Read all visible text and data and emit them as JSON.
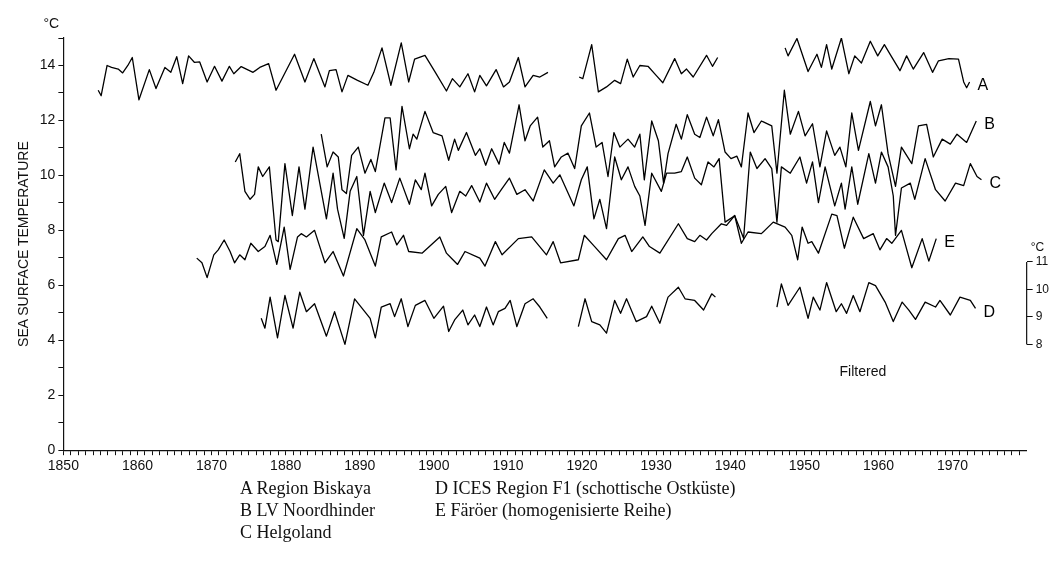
{
  "chart_data": {
    "type": "line",
    "ylabel": "SEA SURFACE TEMPERATURE",
    "y2label": "°C",
    "marker": "none",
    "line_style": "solid",
    "grid": false,
    "legend": false,
    "xlim": [
      1850,
      1980
    ],
    "xticks": [
      1850,
      {
        "value": 1851,
        "label": null
      },
      {
        "value": 1852,
        "label": null
      },
      {
        "value": 1853,
        "label": null
      },
      {
        "value": 1854,
        "label": null
      },
      {
        "value": 1855,
        "label": null
      },
      {
        "value": 1856,
        "label": null
      },
      {
        "value": 1857,
        "label": null
      },
      {
        "value": 1858,
        "label": null
      },
      {
        "value": 1859,
        "label": null
      },
      1860,
      {
        "value": 1861,
        "label": null
      },
      {
        "value": 1862,
        "label": null
      },
      {
        "value": 1863,
        "label": null
      },
      {
        "value": 1864,
        "label": null
      },
      {
        "value": 1865,
        "label": null
      },
      {
        "value": 1866,
        "label": null
      },
      {
        "value": 1867,
        "label": null
      },
      {
        "value": 1868,
        "label": null
      },
      {
        "value": 1869,
        "label": null
      },
      1870,
      {
        "value": 1871,
        "label": null
      },
      {
        "value": 1872,
        "label": null
      },
      {
        "value": 1873,
        "label": null
      },
      {
        "value": 1874,
        "label": null
      },
      {
        "value": 1875,
        "label": null
      },
      {
        "value": 1876,
        "label": null
      },
      {
        "value": 1877,
        "label": null
      },
      {
        "value": 1878,
        "label": null
      },
      {
        "value": 1879,
        "label": null
      },
      1880,
      {
        "value": 1881,
        "label": null
      },
      {
        "value": 1882,
        "label": null
      },
      {
        "value": 1883,
        "label": null
      },
      {
        "value": 1884,
        "label": null
      },
      {
        "value": 1885,
        "label": null
      },
      {
        "value": 1886,
        "label": null
      },
      {
        "value": 1887,
        "label": null
      },
      {
        "value": 1888,
        "label": null
      },
      {
        "value": 1889,
        "label": null
      },
      1890,
      {
        "value": 1891,
        "label": null
      },
      {
        "value": 1892,
        "label": null
      },
      {
        "value": 1893,
        "label": null
      },
      {
        "value": 1894,
        "label": null
      },
      {
        "value": 1895,
        "label": null
      },
      {
        "value": 1896,
        "label": null
      },
      {
        "value": 1897,
        "label": null
      },
      {
        "value": 1898,
        "label": null
      },
      {
        "value": 1899,
        "label": null
      },
      1900,
      {
        "value": 1901,
        "label": null
      },
      {
        "value": 1902,
        "label": null
      },
      {
        "value": 1903,
        "label": null
      },
      {
        "value": 1904,
        "label": null
      },
      {
        "value": 1905,
        "label": null
      },
      {
        "value": 1906,
        "label": null
      },
      {
        "value": 1907,
        "label": null
      },
      {
        "value": 1908,
        "label": null
      },
      {
        "value": 1909,
        "label": null
      },
      1910,
      {
        "value": 1911,
        "label": null
      },
      {
        "value": 1912,
        "label": null
      },
      {
        "value": 1913,
        "label": null
      },
      {
        "value": 1914,
        "label": null
      },
      {
        "value": 1915,
        "label": null
      },
      {
        "value": 1916,
        "label": null
      },
      {
        "value": 1917,
        "label": null
      },
      {
        "value": 1918,
        "label": null
      },
      {
        "value": 1919,
        "label": null
      },
      1920,
      {
        "value": 1921,
        "label": null
      },
      {
        "value": 1922,
        "label": null
      },
      {
        "value": 1923,
        "label": null
      },
      {
        "value": 1924,
        "label": null
      },
      {
        "value": 1925,
        "label": null
      },
      {
        "value": 1926,
        "label": null
      },
      {
        "value": 1927,
        "label": null
      },
      {
        "value": 1928,
        "label": null
      },
      {
        "value": 1929,
        "label": null
      },
      1930,
      {
        "value": 1931,
        "label": null
      },
      {
        "value": 1932,
        "label": null
      },
      {
        "value": 1933,
        "label": null
      },
      {
        "value": 1934,
        "label": null
      },
      {
        "value": 1935,
        "label": null
      },
      {
        "value": 1936,
        "label": null
      },
      {
        "value": 1937,
        "label": null
      },
      {
        "value": 1938,
        "label": null
      },
      {
        "value": 1939,
        "label": null
      },
      1940,
      {
        "value": 1941,
        "label": null
      },
      {
        "value": 1942,
        "label": null
      },
      {
        "value": 1943,
        "label": null
      },
      {
        "value": 1944,
        "label": null
      },
      {
        "value": 1945,
        "label": null
      },
      {
        "value": 1946,
        "label": null
      },
      {
        "value": 1947,
        "label": null
      },
      {
        "value": 1948,
        "label": null
      },
      {
        "value": 1949,
        "label": null
      },
      1950,
      {
        "value": 1951,
        "label": null
      },
      {
        "value": 1952,
        "label": null
      },
      {
        "value": 1953,
        "label": null
      },
      {
        "value": 1954,
        "label": null
      },
      {
        "value": 1955,
        "label": null
      },
      {
        "value": 1956,
        "label": null
      },
      {
        "value": 1957,
        "label": null
      },
      {
        "value": 1958,
        "label": null
      },
      {
        "value": 1959,
        "label": null
      },
      1960,
      {
        "value": 1961,
        "label": null
      },
      {
        "value": 1962,
        "label": null
      },
      {
        "value": 1963,
        "label": null
      },
      {
        "value": 1964,
        "label": null
      },
      {
        "value": 1965,
        "label": null
      },
      {
        "value": 1966,
        "label": null
      },
      {
        "value": 1967,
        "label": null
      },
      {
        "value": 1968,
        "label": null
      },
      {
        "value": 1969,
        "label": null
      },
      1970,
      {
        "value": 1971,
        "label": null
      },
      {
        "value": 1972,
        "label": null
      },
      {
        "value": 1973,
        "label": null
      },
      {
        "value": 1974,
        "label": null
      },
      {
        "value": 1975,
        "label": null
      },
      {
        "value": 1976,
        "label": null
      },
      {
        "value": 1977,
        "label": null
      },
      {
        "value": 1978,
        "label": null
      },
      {
        "value": 1979,
        "label": null
      }
    ],
    "ylim": [
      0,
      15
    ],
    "yticks": [
      0,
      {
        "value": 1,
        "label": null
      },
      2,
      {
        "value": 3,
        "label": null
      },
      4,
      {
        "value": 5,
        "label": null
      },
      6,
      {
        "value": 7,
        "label": null
      },
      8,
      {
        "value": 9,
        "label": null
      },
      10,
      {
        "value": 11,
        "label": null
      },
      12,
      {
        "value": 13,
        "label": null
      },
      14,
      {
        "value": 15,
        "label": null
      }
    ],
    "y2lim": [
      4.15,
      19.15
    ],
    "y2ticks": [
      8,
      9,
      10,
      11
    ],
    "annotations": [
      "°C",
      "Filtered",
      "A Region Biskaya",
      "B LV Noordhinder",
      "C Helgoland",
      "D ICES Region F1 (schottische Ostküste)",
      "E Färöer (homogenisierte Reihe)"
    ],
    "series": [
      {
        "name": "A",
        "color": "#000000",
        "x": [
          1854.7,
          1855.1,
          1855.9,
          1856.5,
          1857.4,
          1858.0,
          1858.7,
          1859.3,
          1860.2,
          1861.6,
          1862.5,
          1863.7,
          1864.5,
          1865.3,
          1866.1,
          1866.9,
          1867.7,
          1868.4,
          1869.4,
          1870.4,
          1871.4,
          1872.4,
          1873.0,
          1874.0,
          1875.6,
          1876.5,
          1877.7,
          1878.7,
          1881.2,
          1882.6,
          1883.8,
          1885.3,
          1885.9,
          1886.8,
          1887.6,
          1888.4,
          1889.7,
          1891.1,
          1891.9,
          1893.0,
          1894.2,
          1895.6,
          1896.6,
          1897.4,
          1898.8,
          1900.2,
          1901.7,
          1902.5,
          1903.5,
          1904.6,
          1905.5,
          1906.2,
          1907.1,
          1908.4,
          1909.4,
          1910.2,
          1911.4,
          1912.3,
          1913.4,
          1914.3,
          1915.4,
          1917.5,
          1919.6,
          1920.1,
          1921.3,
          1922.2,
          1923.3,
          1924.4,
          1925.2,
          1926.1,
          1926.9,
          1927.8,
          1928.9,
          1930.0,
          1930.9,
          1932.5,
          1933.4,
          1934.1,
          1935.0,
          1936.8,
          1937.6,
          1938.3,
          1943.0,
          1947.4,
          1947.8,
          1949.0,
          1950.5,
          1951.7,
          1952.3,
          1953.0,
          1953.7,
          1955.0,
          1956.0,
          1956.8,
          1957.7,
          1958.9,
          1959.9,
          1960.8,
          1961.7,
          1962.9,
          1963.8,
          1964.7,
          1966.1,
          1967.3,
          1968.1,
          1969.5,
          1970.8,
          1971.5,
          1971.9,
          1972.3
        ],
        "values": [
          13.1,
          12.9,
          14.0,
          13.93,
          13.87,
          13.73,
          14.0,
          14.29,
          12.75,
          13.85,
          13.16,
          13.93,
          13.75,
          14.32,
          13.34,
          14.35,
          14.11,
          14.13,
          13.4,
          13.97,
          13.43,
          13.97,
          13.7,
          13.96,
          13.75,
          13.93,
          14.07,
          13.1,
          14.41,
          13.4,
          14.25,
          13.22,
          13.81,
          13.85,
          13.04,
          13.64,
          13.46,
          13.28,
          13.75,
          14.64,
          13.28,
          14.82,
          13.4,
          14.23,
          14.37,
          13.75,
          13.07,
          13.52,
          13.22,
          13.7,
          13.04,
          13.64,
          13.26,
          13.85,
          13.22,
          13.4,
          14.29,
          13.22,
          13.64,
          13.58,
          13.75,
          null,
          13.58,
          13.52,
          14.76,
          13.04,
          13.22,
          13.46,
          13.34,
          14.23,
          13.58,
          14.0,
          13.97,
          13.64,
          13.37,
          14.25,
          13.7,
          13.87,
          13.58,
          14.37,
          13.97,
          14.29,
          null,
          14.64,
          14.35,
          14.98,
          13.78,
          14.41,
          13.93,
          14.76,
          13.87,
          15.0,
          13.7,
          14.35,
          14.09,
          14.88,
          14.35,
          14.76,
          14.35,
          13.81,
          14.35,
          13.87,
          14.47,
          13.75,
          14.17,
          14.25,
          14.23,
          13.4,
          13.19,
          13.4
        ]
      },
      {
        "name": "B",
        "color": "#000000",
        "x": [
          1884.8,
          1885.6,
          1886.4,
          1887.1,
          1887.6,
          1888.2,
          1888.9,
          1889.8,
          1890.7,
          1891.5,
          1892.1,
          1893.4,
          1894.1,
          1894.9,
          1895.7,
          1896.7,
          1897.2,
          1897.7,
          1898.8,
          1899.9,
          1901.1,
          1902.0,
          1902.8,
          1903.3,
          1904.4,
          1905.6,
          1906.2,
          1907.0,
          1907.8,
          1908.8,
          1909.5,
          1910.2,
          1911.5,
          1912.3,
          1913.0,
          1914.0,
          1914.7,
          1915.6,
          1916.3,
          1917.2,
          1918.1,
          1919.0,
          1919.9,
          1921.0,
          1921.9,
          1922.7,
          1923.5,
          1924.3,
          1925.1,
          1926.2,
          1927.1,
          1927.8,
          1928.4,
          1929.4,
          1930.3,
          1931.0,
          1931.6,
          1932.7,
          1933.4,
          1934.2,
          1935.2,
          1935.9,
          1936.8,
          1937.7,
          1938.4,
          1939.3,
          1940.1,
          1940.9,
          1941.5,
          1942.4,
          1943.2,
          1944.2,
          1945.6,
          1946.3,
          1947.3,
          1948.1,
          1949.2,
          1950.1,
          1951.1,
          1952.1,
          1953.0,
          1954.1,
          1954.8,
          1955.6,
          1956.4,
          1957.3,
          1958.9,
          1959.6,
          1960.4,
          1961.3,
          1962.3,
          1963.1,
          1964.5,
          1965.4,
          1966.5,
          1967.4,
          1968.6,
          1969.7,
          1970.6,
          1971.9,
          1973.2
        ],
        "values": [
          11.5,
          10.31,
          10.85,
          10.67,
          9.48,
          9.34,
          10.73,
          11.03,
          10.08,
          10.58,
          10.14,
          12.09,
          12.09,
          10.2,
          12.51,
          10.97,
          11.5,
          11.32,
          12.33,
          11.56,
          11.44,
          10.55,
          11.32,
          10.91,
          11.56,
          10.73,
          10.97,
          10.37,
          10.97,
          10.41,
          11.2,
          10.81,
          12.57,
          11.26,
          11.8,
          12.12,
          11.03,
          11.26,
          10.31,
          10.67,
          10.81,
          10.25,
          11.8,
          12.27,
          11.03,
          11.2,
          9.96,
          11.56,
          11.03,
          11.32,
          11.03,
          11.5,
          9.84,
          11.98,
          11.26,
          9.72,
          10.79,
          11.86,
          11.32,
          12.21,
          11.5,
          11.38,
          12.12,
          11.44,
          12.03,
          10.85,
          10.61,
          10.7,
          10.31,
          12.27,
          11.56,
          11.98,
          11.8,
          10.08,
          13.1,
          11.5,
          12.33,
          11.44,
          11.88,
          10.31,
          11.62,
          10.73,
          11.03,
          10.31,
          12.27,
          10.91,
          12.69,
          11.8,
          12.57,
          10.79,
          9.6,
          11.03,
          10.43,
          11.8,
          11.86,
          10.67,
          11.32,
          11.14,
          11.5,
          11.2,
          11.98
        ]
      },
      {
        "name": "C",
        "color": "#000000",
        "x": [
          1873.2,
          1873.8,
          1874.5,
          1875.2,
          1875.8,
          1876.3,
          1876.9,
          1877.8,
          1878.7,
          1879.0,
          1879.9,
          1880.9,
          1881.8,
          1882.6,
          1883.7,
          1884.6,
          1885.5,
          1886.4,
          1887.0,
          1887.9,
          1888.7,
          1889.6,
          1890.5,
          1891.4,
          1892.1,
          1893.3,
          1894.3,
          1895.4,
          1896.7,
          1897.5,
          1898.3,
          1898.8,
          1899.7,
          1900.6,
          1901.6,
          1902.4,
          1903.5,
          1904.3,
          1905.1,
          1906.2,
          1907.1,
          1908.2,
          1909.1,
          1910.2,
          1911.2,
          1912.3,
          1913.4,
          1914.9,
          1916.1,
          1917.0,
          1918.9,
          1919.9,
          1920.7,
          1921.6,
          1922.4,
          1923.3,
          1924.4,
          1925.3,
          1926.2,
          1927.1,
          1927.8,
          1928.5,
          1929.4,
          1930.7,
          1931.4,
          1932.5,
          1933.4,
          1934.2,
          1935.2,
          1936.1,
          1937.0,
          1937.8,
          1938.5,
          1939.3,
          1940.6,
          1941.8,
          1942.7,
          1943.6,
          1944.7,
          1945.6,
          1946.3,
          1946.9,
          1948.1,
          1949.4,
          1950.3,
          1951.1,
          1951.9,
          1952.8,
          1954.1,
          1955.0,
          1955.5,
          1956.4,
          1957.2,
          1958.7,
          1959.6,
          1960.4,
          1961.3,
          1962.0,
          1962.3,
          1963.1,
          1964.3,
          1964.9,
          1966.3,
          1967.7,
          1969.0,
          1970.4,
          1971.5,
          1972.4,
          1973.3,
          1973.9
        ],
        "values": [
          10.49,
          10.79,
          9.42,
          9.13,
          9.31,
          10.31,
          9.96,
          10.31,
          7.65,
          7.59,
          10.43,
          8.54,
          10.31,
          8.77,
          11.03,
          9.72,
          8.42,
          10.08,
          8.77,
          7.71,
          9.42,
          9.96,
          7.82,
          9.42,
          8.65,
          9.72,
          9.01,
          9.9,
          8.95,
          9.84,
          9.48,
          10.08,
          8.89,
          9.31,
          9.6,
          8.65,
          9.42,
          9.25,
          9.63,
          9.03,
          9.72,
          9.13,
          9.48,
          9.9,
          9.31,
          9.48,
          9.07,
          10.2,
          9.72,
          10.02,
          8.89,
          9.84,
          10.31,
          8.42,
          9.13,
          8.06,
          10.67,
          9.84,
          10.31,
          9.6,
          9.25,
          8.18,
          10.08,
          9.42,
          10.08,
          10.08,
          10.14,
          10.67,
          9.9,
          9.66,
          10.49,
          10.31,
          10.61,
          8.3,
          8.53,
          7.71,
          10.85,
          10.25,
          10.61,
          10.25,
          8.3,
          10.31,
          10.08,
          10.67,
          9.72,
          10.49,
          9.01,
          10.31,
          8.89,
          9.72,
          8.77,
          10.31,
          8.95,
          10.79,
          9.72,
          10.85,
          10.31,
          9.25,
          7.82,
          9.54,
          9.72,
          9.13,
          10.61,
          9.48,
          9.07,
          9.72,
          9.63,
          10.43,
          9.96,
          9.84
        ]
      },
      {
        "name": "D",
        "color": "#000000",
        "axis": "y2",
        "x": [
          1876.7,
          1877.2,
          1877.9,
          1878.9,
          1879.9,
          1881.0,
          1881.9,
          1882.8,
          1883.9,
          1885.5,
          1886.6,
          1888.0,
          1889.3,
          1891.4,
          1892.1,
          1892.9,
          1894.1,
          1894.7,
          1895.6,
          1896.5,
          1897.5,
          1898.8,
          1900.0,
          1901.3,
          1902.0,
          1902.8,
          1903.9,
          1904.6,
          1905.5,
          1906.2,
          1907.1,
          1908.0,
          1908.7,
          1909.6,
          1910.3,
          1911.2,
          1912.3,
          1913.4,
          1914.3,
          1915.3,
          1917.5,
          1919.5,
          1920.4,
          1921.3,
          1922.4,
          1923.3,
          1924.4,
          1925.2,
          1926.0,
          1927.3,
          1928.7,
          1929.4,
          1930.5,
          1931.6,
          1933.0,
          1933.9,
          1935.2,
          1936.4,
          1937.5,
          1938.0,
          1943.0,
          1946.3,
          1946.9,
          1947.8,
          1949.4,
          1950.5,
          1951.2,
          1952.1,
          1953.0,
          1954.3,
          1955.0,
          1955.7,
          1956.6,
          1957.5,
          1958.7,
          1959.6,
          1960.9,
          1962.0,
          1963.2,
          1964.1,
          1965.0,
          1966.3,
          1967.7,
          1968.3,
          1969.7,
          1971.0,
          1972.4,
          1973.1
        ],
        "values": [
          8.95,
          8.59,
          9.72,
          8.24,
          9.78,
          8.59,
          9.9,
          9.19,
          9.48,
          8.3,
          9.19,
          8.0,
          9.66,
          8.95,
          8.24,
          9.36,
          9.48,
          9.01,
          9.66,
          8.65,
          9.42,
          9.6,
          8.95,
          9.39,
          8.47,
          8.89,
          9.25,
          8.71,
          9.07,
          8.65,
          9.36,
          8.71,
          9.19,
          9.31,
          9.6,
          8.65,
          9.48,
          9.66,
          9.36,
          8.95,
          null,
          8.65,
          9.66,
          8.83,
          8.71,
          8.41,
          9.6,
          9.13,
          9.66,
          8.83,
          9.01,
          9.39,
          8.77,
          9.72,
          10.08,
          9.66,
          9.6,
          9.25,
          9.84,
          9.72,
          null,
          9.36,
          10.2,
          9.42,
          10.08,
          8.95,
          9.72,
          9.25,
          10.25,
          9.19,
          9.48,
          9.13,
          9.78,
          9.19,
          10.25,
          10.14,
          9.54,
          8.83,
          9.54,
          9.25,
          8.91,
          9.54,
          9.36,
          9.6,
          9.07,
          9.72,
          9.6,
          9.31
        ]
      },
      {
        "name": "E",
        "color": "#000000",
        "x": [
          1868.0,
          1868.7,
          1869.4,
          1870.3,
          1870.9,
          1871.7,
          1872.5,
          1873.1,
          1873.8,
          1874.5,
          1875.3,
          1876.3,
          1877.2,
          1877.9,
          1878.8,
          1879.8,
          1880.6,
          1881.6,
          1882.1,
          1882.8,
          1883.9,
          1885.3,
          1886.4,
          1887.8,
          1889.6,
          1890.7,
          1892.1,
          1892.9,
          1894.3,
          1895.0,
          1895.9,
          1896.6,
          1898.4,
          1900.8,
          1901.7,
          1903.2,
          1904.2,
          1906.2,
          1906.9,
          1908.3,
          1909.2,
          1911.4,
          1913.2,
          1915.2,
          1916.1,
          1917.1,
          1919.5,
          1920.3,
          1921.7,
          1923.3,
          1924.9,
          1925.8,
          1926.7,
          1928.2,
          1929.1,
          1930.5,
          1933.0,
          1934.2,
          1935.2,
          1935.9,
          1936.8,
          1937.5,
          1938.8,
          1939.5,
          1940.6,
          1941.5,
          1942.4,
          1944.2,
          1945.8,
          1947.4,
          1948.3,
          1949.1,
          1949.7,
          1950.5,
          1951.0,
          1951.9,
          1953.7,
          1954.4,
          1955.4,
          1956.6,
          1958.0,
          1959.3,
          1960.2,
          1961.1,
          1961.8,
          1963.1,
          1964.5,
          1965.9,
          1966.8,
          1967.8
        ],
        "values": [
          6.99,
          6.82,
          6.28,
          7.11,
          7.29,
          7.65,
          7.23,
          6.82,
          7.11,
          6.93,
          7.53,
          7.23,
          7.41,
          7.82,
          6.76,
          8.12,
          6.58,
          7.76,
          7.88,
          7.76,
          8.0,
          6.82,
          7.23,
          6.34,
          8.06,
          7.65,
          6.7,
          7.76,
          7.94,
          7.47,
          7.82,
          7.23,
          7.17,
          7.76,
          7.17,
          6.76,
          7.23,
          6.99,
          6.7,
          7.59,
          7.11,
          7.7,
          7.76,
          7.11,
          7.59,
          6.82,
          6.93,
          7.82,
          7.41,
          6.93,
          7.7,
          7.82,
          7.23,
          7.76,
          7.41,
          7.17,
          8.24,
          7.7,
          7.59,
          7.82,
          7.65,
          7.88,
          8.24,
          8.18,
          8.54,
          7.53,
          7.94,
          7.88,
          8.3,
          8.12,
          7.82,
          6.93,
          8.12,
          7.53,
          7.59,
          7.17,
          8.59,
          8.54,
          7.35,
          8.48,
          7.7,
          7.88,
          7.29,
          7.7,
          7.53,
          8.0,
          6.64,
          7.7,
          6.88,
          7.7
        ]
      }
    ]
  }
}
